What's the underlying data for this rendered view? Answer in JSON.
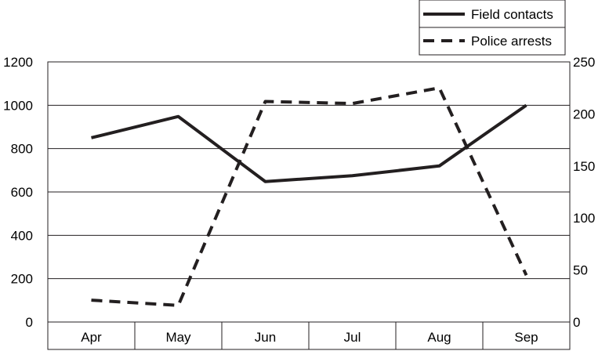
{
  "chart_data": {
    "type": "line",
    "categories": [
      "Apr",
      "May",
      "Jun",
      "Jul",
      "Aug",
      "Sep"
    ],
    "series": [
      {
        "name": "Field contacts",
        "axis": "left",
        "style": "solid",
        "color": "#231f20",
        "values": [
          850,
          948,
          648,
          675,
          720,
          1000
        ]
      },
      {
        "name": "Police arrests",
        "axis": "right",
        "style": "dashed",
        "color": "#231f20",
        "values": [
          21,
          16,
          212,
          210,
          225,
          45
        ]
      }
    ],
    "y_left": {
      "ylim": [
        0,
        1200
      ],
      "ticks": [
        0,
        200,
        400,
        600,
        800,
        1000,
        1200
      ]
    },
    "y_right": {
      "ylim": [
        0,
        250
      ],
      "ticks": [
        0,
        50,
        100,
        150,
        200,
        250
      ]
    },
    "grid": "horizontal",
    "legend_position": "top-right"
  }
}
